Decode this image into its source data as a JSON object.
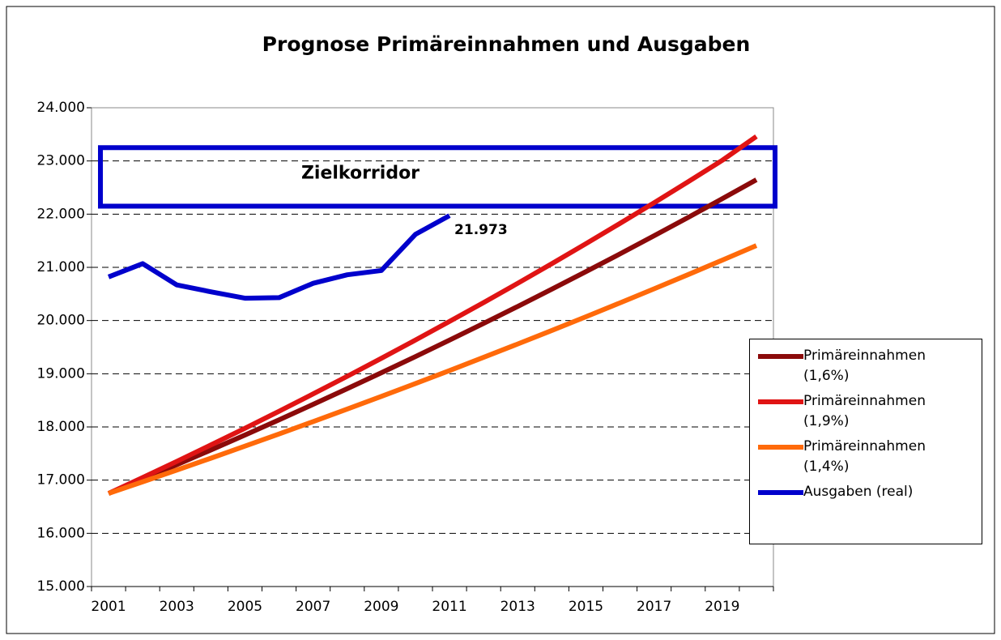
{
  "chart_data": {
    "type": "line",
    "title": "Prognose Primäreinnahmen und Ausgaben",
    "categories": [
      "2001",
      null,
      "2003",
      null,
      "2005",
      null,
      "2007",
      null,
      "2009",
      null,
      "2011",
      null,
      "2013",
      null,
      "2015",
      null,
      "2017",
      null,
      "2019",
      null
    ],
    "series": [
      {
        "name": "Primäreinnahmen (1,6%)",
        "color": "#8b0a0a",
        "values": [
          16750,
          17018,
          17290,
          17567,
          17848,
          18134,
          18424,
          18719,
          19018,
          19322,
          19632,
          19946,
          20265,
          20589,
          20919,
          21253,
          21594,
          21939,
          22290,
          22647
        ]
      },
      {
        "name": "Primäreinnahmen (1,9%)",
        "color": "#e01414",
        "values": [
          16750,
          17048,
          17352,
          17661,
          17975,
          18295,
          18621,
          18952,
          19290,
          19633,
          19983,
          20338,
          20700,
          21069,
          21444,
          21826,
          22214,
          22610,
          23012,
          23460
        ]
      },
      {
        "name": "Primäreinnahmen (1,4%)",
        "color": "#ff6a0a",
        "values": [
          16750,
          16968,
          17189,
          17412,
          17639,
          17868,
          18100,
          18336,
          18574,
          18816,
          19060,
          19308,
          19559,
          19813,
          20071,
          20332,
          20596,
          20864,
          21135,
          21410
        ]
      },
      {
        "name": "Ausgaben (real)",
        "color": "#0000cc",
        "values": [
          20820,
          21070,
          20670,
          20540,
          20420,
          20430,
          20700,
          20860,
          20940,
          21620,
          21973,
          null,
          null,
          null,
          null,
          null,
          null,
          null,
          null,
          null
        ],
        "value_labels": [
          null,
          null,
          null,
          null,
          null,
          null,
          null,
          null,
          null,
          null,
          "21.973",
          null,
          null,
          null,
          null,
          null,
          null,
          null,
          null,
          null
        ]
      }
    ],
    "annotation": {
      "text": "Zielkorridor",
      "ymin": 22150,
      "ymax": 23250,
      "color": "#0000cc"
    },
    "ylim": [
      15000,
      24000
    ],
    "yticks": [
      {
        "value": 15000,
        "label": "15.000"
      },
      {
        "value": 16000,
        "label": "16.000"
      },
      {
        "value": 17000,
        "label": "17.000"
      },
      {
        "value": 18000,
        "label": "18.000"
      },
      {
        "value": 19000,
        "label": "19.000"
      },
      {
        "value": 20000,
        "label": "20.000"
      },
      {
        "value": 21000,
        "label": "21.000"
      },
      {
        "value": 22000,
        "label": "22.000"
      },
      {
        "value": 23000,
        "label": "23.000"
      },
      {
        "value": 24000,
        "label": "24.000"
      }
    ],
    "grid": true,
    "legend": "right"
  }
}
